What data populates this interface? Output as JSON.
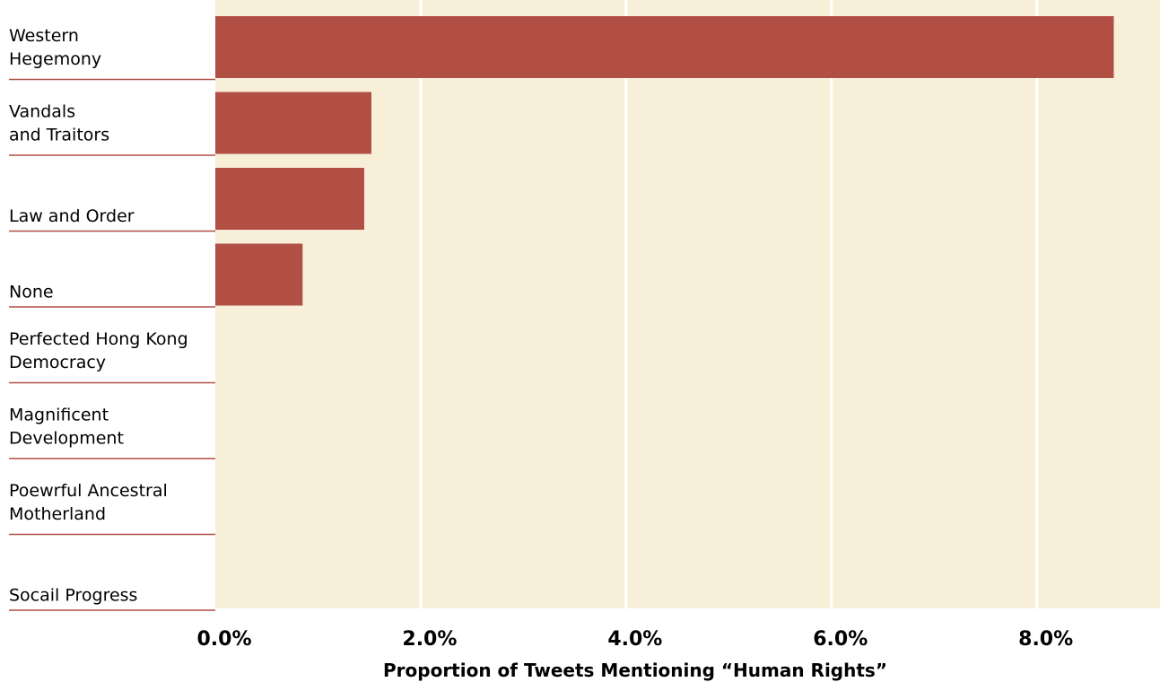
{
  "chart_data": {
    "type": "bar",
    "orientation": "horizontal",
    "categories": [
      "Western\nHegemony",
      "Vandals\nand Traitors",
      "Law and Order",
      "None",
      "Perfected Hong Kong\nDemocracy",
      "Magnificent\nDevelopment",
      "Poewrful Ancestral\nMotherland",
      "Socail Progress"
    ],
    "values": [
      8.75,
      1.52,
      1.45,
      0.85,
      0,
      0,
      0,
      0
    ],
    "unit": "%",
    "xlabel": "Proportion of Tweets Mentioning “Human Rights”",
    "ylabel": "",
    "xlim": [
      0,
      9.2
    ],
    "xticks": [
      0,
      2,
      4,
      6,
      8
    ],
    "xtick_labels": [
      "0.0%",
      "2.0%",
      "4.0%",
      "6.0%",
      "8.0%"
    ],
    "grid": true,
    "colors": {
      "bar": "#b14f45",
      "plot_background": "#f8efd9",
      "gridline": "#ffffff",
      "category_separator": "#b14f45"
    }
  }
}
